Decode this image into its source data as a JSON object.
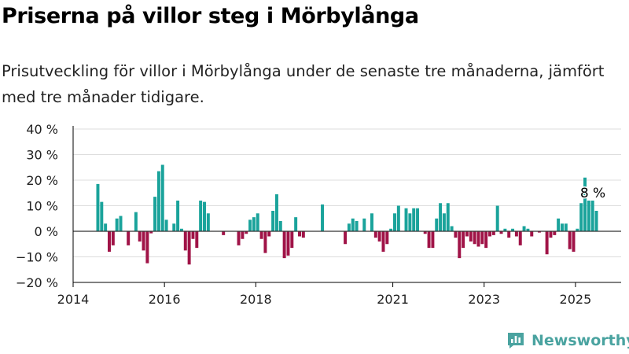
{
  "title": "Priserna på villor steg i Mörbylånga",
  "subtitle": "Prisutveckling för villor i Mörbylånga under de senaste tre månaderna, jämfört med tre månader tidigare.",
  "brand": {
    "name": "Newsworthy",
    "logo_icon": "newsworthy-logo-icon"
  },
  "colors": {
    "positive": "#1aa39b",
    "negative": "#a01347",
    "axis": "#000000",
    "grid": "#dddddd",
    "brand": "#4aa3a0"
  },
  "chart_data": {
    "type": "bar",
    "x_unit": "month",
    "ylim": [
      -20,
      40
    ],
    "yticks": [
      -20,
      -10,
      0,
      10,
      20,
      30,
      40
    ],
    "ytick_labels": [
      "−20 %",
      "−10 %",
      "0 %",
      "10 %",
      "20 %",
      "30 %",
      "40 %"
    ],
    "xticks": [
      "2014-01",
      "2016-01",
      "2018-01",
      "2021-01",
      "2023-01",
      "2025-01"
    ],
    "xtick_labels": [
      "2014",
      "2016",
      "2018",
      "2021",
      "2023",
      "2025"
    ],
    "xlim": [
      "2014-01",
      "2025-12"
    ],
    "grid": true,
    "annotation": {
      "x": "2025-03",
      "text": "8 %"
    },
    "points": [
      {
        "x": "2014-07",
        "y": 18.5
      },
      {
        "x": "2014-08",
        "y": 11.5
      },
      {
        "x": "2014-09",
        "y": 3
      },
      {
        "x": "2014-10",
        "y": -8
      },
      {
        "x": "2014-11",
        "y": -5.5
      },
      {
        "x": "2014-12",
        "y": 5
      },
      {
        "x": "2015-01",
        "y": 6
      },
      {
        "x": "2015-03",
        "y": -5.5
      },
      {
        "x": "2015-05",
        "y": 7.5
      },
      {
        "x": "2015-06",
        "y": -4
      },
      {
        "x": "2015-07",
        "y": -7.5
      },
      {
        "x": "2015-08",
        "y": -12.5
      },
      {
        "x": "2015-09",
        "y": -0.8
      },
      {
        "x": "2015-10",
        "y": 13.5
      },
      {
        "x": "2015-11",
        "y": 23.5
      },
      {
        "x": "2015-12",
        "y": 26
      },
      {
        "x": "2016-01",
        "y": 4.5
      },
      {
        "x": "2016-03",
        "y": 3
      },
      {
        "x": "2016-04",
        "y": 12
      },
      {
        "x": "2016-05",
        "y": 1
      },
      {
        "x": "2016-06",
        "y": -7.5
      },
      {
        "x": "2016-07",
        "y": -13
      },
      {
        "x": "2016-08",
        "y": -3
      },
      {
        "x": "2016-09",
        "y": -6.5
      },
      {
        "x": "2016-10",
        "y": 12
      },
      {
        "x": "2016-11",
        "y": 11.5
      },
      {
        "x": "2016-12",
        "y": 7
      },
      {
        "x": "2017-04",
        "y": -1.5
      },
      {
        "x": "2017-08",
        "y": -5.5
      },
      {
        "x": "2017-09",
        "y": -3
      },
      {
        "x": "2017-10",
        "y": -1
      },
      {
        "x": "2017-11",
        "y": 4.5
      },
      {
        "x": "2017-12",
        "y": 5.5
      },
      {
        "x": "2018-01",
        "y": 7
      },
      {
        "x": "2018-02",
        "y": -3
      },
      {
        "x": "2018-03",
        "y": -8.5
      },
      {
        "x": "2018-04",
        "y": -2
      },
      {
        "x": "2018-05",
        "y": 8
      },
      {
        "x": "2018-06",
        "y": 14.5
      },
      {
        "x": "2018-07",
        "y": 4
      },
      {
        "x": "2018-08",
        "y": -10.5
      },
      {
        "x": "2018-09",
        "y": -9.5
      },
      {
        "x": "2018-10",
        "y": -6.5
      },
      {
        "x": "2018-11",
        "y": 5.5
      },
      {
        "x": "2018-12",
        "y": -2
      },
      {
        "x": "2019-01",
        "y": -2.5
      },
      {
        "x": "2019-06",
        "y": 10.5
      },
      {
        "x": "2019-12",
        "y": -5
      },
      {
        "x": "2020-01",
        "y": 3
      },
      {
        "x": "2020-02",
        "y": 5
      },
      {
        "x": "2020-03",
        "y": 4
      },
      {
        "x": "2020-05",
        "y": 5
      },
      {
        "x": "2020-07",
        "y": 7
      },
      {
        "x": "2020-08",
        "y": -2.5
      },
      {
        "x": "2020-09",
        "y": -4
      },
      {
        "x": "2020-10",
        "y": -8
      },
      {
        "x": "2020-11",
        "y": -5
      },
      {
        "x": "2020-12",
        "y": 1
      },
      {
        "x": "2021-01",
        "y": 7
      },
      {
        "x": "2021-02",
        "y": 10
      },
      {
        "x": "2021-04",
        "y": 9
      },
      {
        "x": "2021-05",
        "y": 7
      },
      {
        "x": "2021-06",
        "y": 9
      },
      {
        "x": "2021-07",
        "y": 9
      },
      {
        "x": "2021-09",
        "y": -1
      },
      {
        "x": "2021-10",
        "y": -6.5
      },
      {
        "x": "2021-11",
        "y": -6.5
      },
      {
        "x": "2021-12",
        "y": 5
      },
      {
        "x": "2022-01",
        "y": 11
      },
      {
        "x": "2022-02",
        "y": 7
      },
      {
        "x": "2022-03",
        "y": 11
      },
      {
        "x": "2022-04",
        "y": 2
      },
      {
        "x": "2022-05",
        "y": -2.5
      },
      {
        "x": "2022-06",
        "y": -10.5
      },
      {
        "x": "2022-07",
        "y": -6.5
      },
      {
        "x": "2022-08",
        "y": -2
      },
      {
        "x": "2022-09",
        "y": -4
      },
      {
        "x": "2022-10",
        "y": -5
      },
      {
        "x": "2022-11",
        "y": -6
      },
      {
        "x": "2022-12",
        "y": -5
      },
      {
        "x": "2023-01",
        "y": -6.5
      },
      {
        "x": "2023-02",
        "y": -2
      },
      {
        "x": "2023-03",
        "y": -1.5
      },
      {
        "x": "2023-04",
        "y": 10
      },
      {
        "x": "2023-05",
        "y": -1
      },
      {
        "x": "2023-06",
        "y": 1
      },
      {
        "x": "2023-07",
        "y": -2.5
      },
      {
        "x": "2023-08",
        "y": 1
      },
      {
        "x": "2023-09",
        "y": -2
      },
      {
        "x": "2023-10",
        "y": -5.5
      },
      {
        "x": "2023-11",
        "y": 2
      },
      {
        "x": "2023-12",
        "y": 1
      },
      {
        "x": "2024-01",
        "y": -2
      },
      {
        "x": "2024-03",
        "y": -0.5
      },
      {
        "x": "2024-05",
        "y": -9
      },
      {
        "x": "2024-06",
        "y": -2.5
      },
      {
        "x": "2024-07",
        "y": -1.5
      },
      {
        "x": "2024-08",
        "y": 5
      },
      {
        "x": "2024-09",
        "y": 3
      },
      {
        "x": "2024-10",
        "y": 3
      },
      {
        "x": "2024-11",
        "y": -7
      },
      {
        "x": "2024-12",
        "y": -8
      },
      {
        "x": "2025-01",
        "y": 1
      },
      {
        "x": "2025-02",
        "y": 11
      },
      {
        "x": "2025-03",
        "y": 21
      },
      {
        "x": "2025-04",
        "y": 12
      },
      {
        "x": "2025-05",
        "y": 12
      },
      {
        "x": "2025-06",
        "y": 8
      }
    ]
  }
}
